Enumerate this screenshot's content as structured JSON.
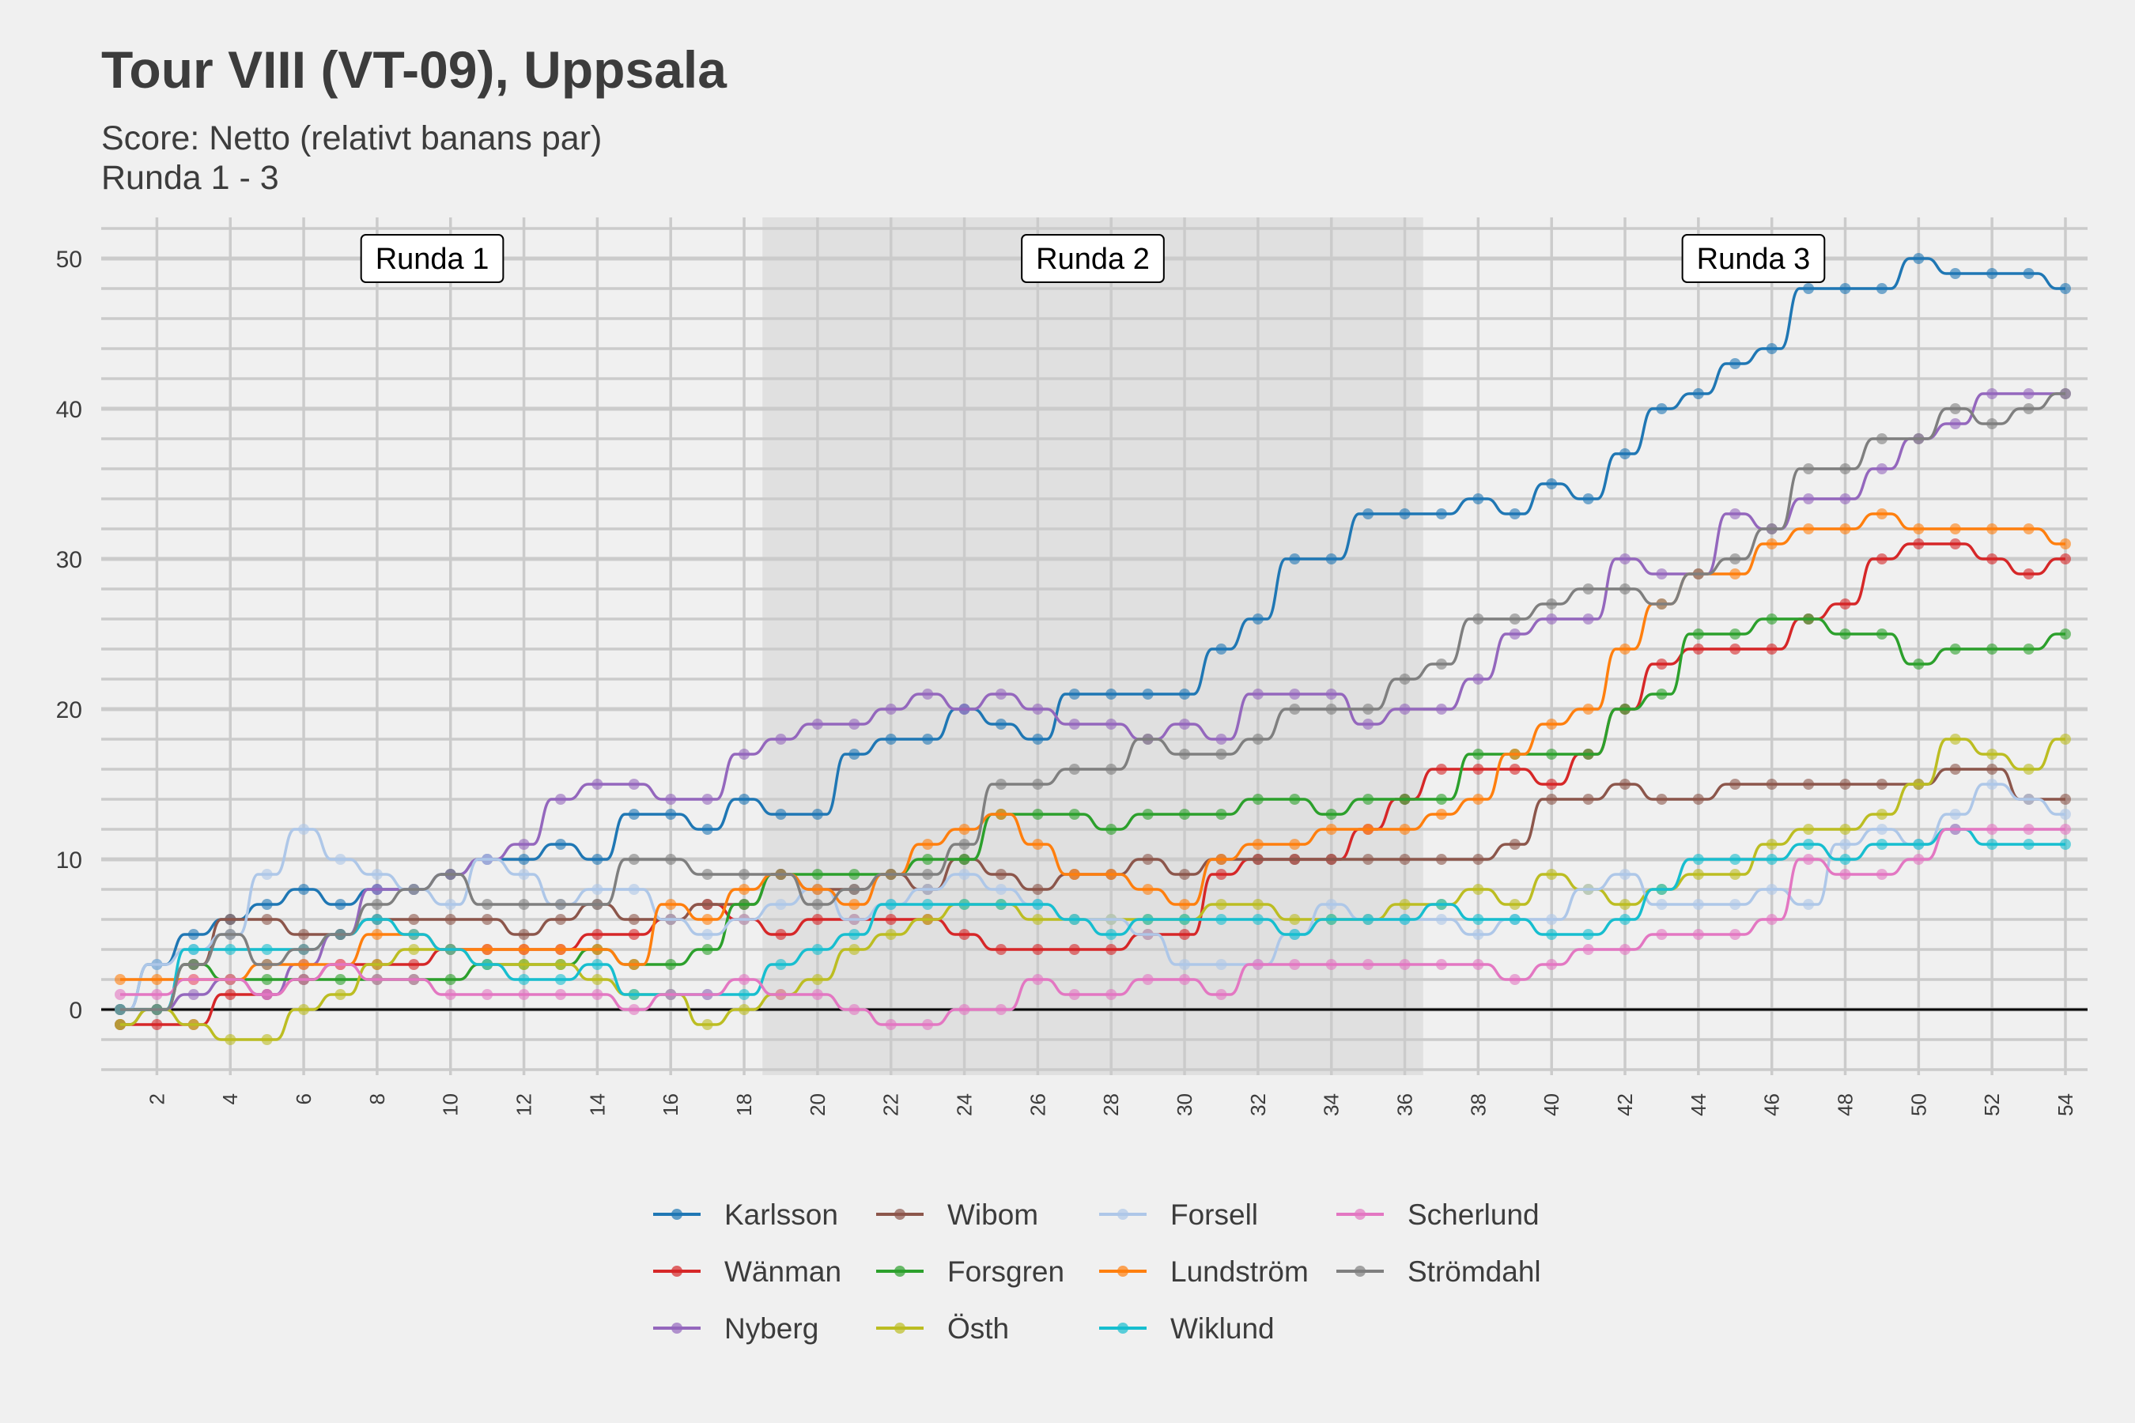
{
  "title": "Tour VIII (VT-09), Uppsala",
  "subtitle_line1": "Score: Netto (relativt banans par)",
  "subtitle_line2": "Runda 1 - 3",
  "chart_data": {
    "type": "line",
    "x_min": 1,
    "x_max": 54,
    "ylim": [
      -4,
      52
    ],
    "y_ticks": [
      0,
      10,
      20,
      30,
      40,
      50
    ],
    "x_ticks": [
      2,
      4,
      6,
      8,
      10,
      12,
      14,
      16,
      18,
      20,
      22,
      24,
      26,
      28,
      30,
      32,
      34,
      36,
      38,
      40,
      42,
      44,
      46,
      48,
      50,
      52,
      54
    ],
    "grid": true,
    "legend_position": "bottom",
    "regions": [
      {
        "label": "Runda 1",
        "from": 0.5,
        "to": 18.5,
        "shaded": false
      },
      {
        "label": "Runda 2",
        "from": 18.5,
        "to": 36.5,
        "shaded": true
      },
      {
        "label": "Runda 3",
        "from": 36.5,
        "to": 54.5,
        "shaded": false
      }
    ],
    "series": [
      {
        "name": "Karlsson",
        "color": "#1f77b4",
        "values": [
          0,
          3,
          5,
          6,
          7,
          8,
          7,
          8,
          8,
          9,
          10,
          10,
          11,
          10,
          13,
          13,
          12,
          14,
          13,
          13,
          17,
          18,
          18,
          20,
          19,
          18,
          21,
          21,
          21,
          21,
          24,
          26,
          30,
          30,
          33,
          33,
          33,
          34,
          33,
          35,
          34,
          37,
          40,
          41,
          43,
          44,
          48,
          48,
          48,
          50,
          49,
          49,
          49,
          48
        ]
      },
      {
        "name": "Wänman",
        "color": "#d62728",
        "values": [
          -1,
          -1,
          -1,
          1,
          1,
          2,
          3,
          3,
          3,
          4,
          4,
          4,
          4,
          5,
          5,
          6,
          7,
          6,
          5,
          6,
          6,
          6,
          6,
          5,
          4,
          4,
          4,
          4,
          5,
          5,
          9,
          10,
          10,
          10,
          12,
          14,
          16,
          16,
          16,
          15,
          17,
          20,
          23,
          24,
          24,
          24,
          26,
          27,
          30,
          31,
          31,
          30,
          29,
          30
        ]
      },
      {
        "name": "Nyberg",
        "color": "#9467bd",
        "values": [
          0,
          0,
          1,
          2,
          1,
          3,
          5,
          8,
          8,
          9,
          10,
          11,
          14,
          15,
          15,
          14,
          14,
          17,
          18,
          19,
          19,
          20,
          21,
          20,
          21,
          20,
          19,
          19,
          18,
          19,
          18,
          21,
          21,
          21,
          19,
          20,
          20,
          22,
          25,
          26,
          26,
          30,
          29,
          29,
          33,
          32,
          34,
          34,
          36,
          38,
          39,
          41,
          41,
          41
        ]
      },
      {
        "name": "Wibom",
        "color": "#8c564b",
        "values": [
          -1,
          0,
          3,
          6,
          6,
          5,
          5,
          6,
          6,
          6,
          6,
          5,
          6,
          7,
          6,
          6,
          7,
          7,
          9,
          8,
          8,
          9,
          8,
          10,
          9,
          8,
          9,
          9,
          10,
          9,
          10,
          10,
          10,
          10,
          10,
          10,
          10,
          10,
          11,
          14,
          14,
          15,
          14,
          14,
          15,
          15,
          15,
          15,
          15,
          15,
          16,
          16,
          14,
          14
        ]
      },
      {
        "name": "Forsgren",
        "color": "#2ca02c",
        "values": [
          0,
          0,
          3,
          2,
          2,
          2,
          2,
          2,
          2,
          2,
          3,
          3,
          3,
          4,
          3,
          3,
          4,
          7,
          9,
          9,
          9,
          9,
          10,
          10,
          13,
          13,
          13,
          12,
          13,
          13,
          13,
          14,
          14,
          13,
          14,
          14,
          14,
          17,
          17,
          17,
          17,
          20,
          21,
          25,
          25,
          26,
          26,
          25,
          25,
          23,
          24,
          24,
          24,
          25
        ]
      },
      {
        "name": "Östh",
        "color": "#bcbd22",
        "values": [
          -1,
          0,
          -1,
          -2,
          -2,
          0,
          1,
          3,
          4,
          4,
          3,
          3,
          3,
          2,
          1,
          1,
          -1,
          0,
          1,
          2,
          4,
          5,
          6,
          7,
          7,
          6,
          6,
          6,
          6,
          6,
          7,
          7,
          6,
          6,
          6,
          7,
          7,
          8,
          7,
          9,
          8,
          7,
          8,
          9,
          9,
          11,
          12,
          12,
          13,
          15,
          18,
          17,
          16,
          18
        ]
      },
      {
        "name": "Forsell",
        "color": "#aec7e8",
        "values": [
          0,
          3,
          4,
          5,
          9,
          12,
          10,
          9,
          8,
          7,
          10,
          9,
          7,
          8,
          8,
          6,
          5,
          6,
          7,
          8,
          6,
          7,
          8,
          9,
          8,
          7,
          6,
          6,
          5,
          3,
          3,
          3,
          5,
          7,
          6,
          6,
          6,
          5,
          6,
          6,
          8,
          9,
          7,
          7,
          7,
          8,
          7,
          11,
          12,
          11,
          13,
          15,
          14,
          13
        ]
      },
      {
        "name": "Lundström",
        "color": "#ff7f0e",
        "values": [
          2,
          2,
          2,
          2,
          3,
          3,
          3,
          5,
          5,
          4,
          4,
          4,
          4,
          4,
          3,
          7,
          6,
          8,
          9,
          8,
          7,
          9,
          11,
          12,
          13,
          11,
          9,
          9,
          8,
          7,
          10,
          11,
          11,
          12,
          12,
          12,
          13,
          14,
          17,
          19,
          20,
          24,
          27,
          29,
          29,
          31,
          32,
          32,
          33,
          32,
          32,
          32,
          32,
          31
        ]
      },
      {
        "name": "Wiklund",
        "color": "#17becf",
        "values": [
          0,
          0,
          4,
          4,
          4,
          4,
          5,
          6,
          5,
          4,
          3,
          2,
          2,
          3,
          1,
          1,
          1,
          1,
          3,
          4,
          5,
          7,
          7,
          7,
          7,
          7,
          6,
          5,
          6,
          6,
          6,
          6,
          5,
          6,
          6,
          6,
          7,
          6,
          6,
          5,
          5,
          6,
          8,
          10,
          10,
          10,
          11,
          10,
          11,
          11,
          12,
          11,
          11,
          11
        ]
      },
      {
        "name": "Scherlund",
        "color": "#e377c2",
        "values": [
          1,
          1,
          2,
          2,
          1,
          2,
          3,
          2,
          2,
          1,
          1,
          1,
          1,
          1,
          0,
          1,
          1,
          2,
          1,
          1,
          0,
          -1,
          -1,
          0,
          0,
          2,
          1,
          1,
          2,
          2,
          1,
          3,
          3,
          3,
          3,
          3,
          3,
          3,
          2,
          3,
          4,
          4,
          5,
          5,
          5,
          6,
          10,
          9,
          9,
          10,
          12,
          12,
          12,
          12
        ]
      },
      {
        "name": "Strömdahl",
        "color": "#7f7f7f",
        "values": [
          0,
          0,
          3,
          5,
          3,
          4,
          5,
          7,
          8,
          9,
          7,
          7,
          7,
          7,
          10,
          10,
          9,
          9,
          9,
          7,
          8,
          9,
          9,
          11,
          15,
          15,
          16,
          16,
          18,
          17,
          17,
          18,
          20,
          20,
          20,
          22,
          23,
          26,
          26,
          27,
          28,
          28,
          27,
          29,
          30,
          32,
          36,
          36,
          38,
          38,
          40,
          39,
          40,
          41
        ]
      }
    ]
  },
  "legend_columns": [
    [
      "Karlsson",
      "Wänman",
      "Nyberg"
    ],
    [
      "Wibom",
      "Forsgren",
      "Östh"
    ],
    [
      "Forsell",
      "Lundström",
      "Wiklund"
    ],
    [
      "Scherlund",
      "Strömdahl"
    ]
  ]
}
